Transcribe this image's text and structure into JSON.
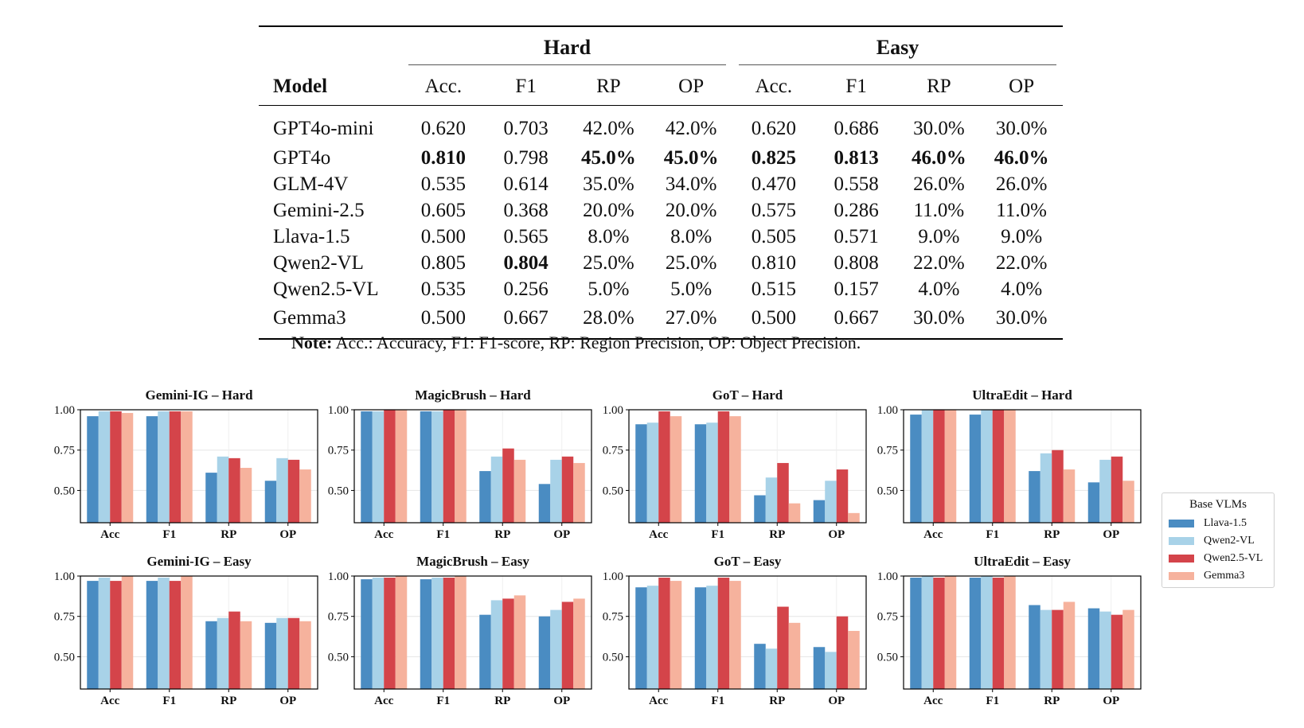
{
  "table": {
    "groups": [
      "Hard",
      "Easy"
    ],
    "model_header": "Model",
    "columns": [
      "Acc.",
      "F1",
      "RP",
      "OP",
      "Acc.",
      "F1",
      "RP",
      "OP"
    ],
    "rows": [
      {
        "model": "GPT4o-mini",
        "values": [
          "0.620",
          "0.703",
          "42.0%",
          "42.0%",
          "0.620",
          "0.686",
          "30.0%",
          "30.0%"
        ],
        "bold": []
      },
      {
        "model": "GPT4o",
        "values": [
          "0.810",
          "0.798",
          "45.0%",
          "45.0%",
          "0.825",
          "0.813",
          "46.0%",
          "46.0%"
        ],
        "bold": [
          0,
          2,
          3,
          4,
          5,
          6,
          7
        ]
      },
      {
        "model": "GLM-4V",
        "values": [
          "0.535",
          "0.614",
          "35.0%",
          "34.0%",
          "0.470",
          "0.558",
          "26.0%",
          "26.0%"
        ],
        "bold": []
      },
      {
        "model": "Gemini-2.5",
        "values": [
          "0.605",
          "0.368",
          "20.0%",
          "20.0%",
          "0.575",
          "0.286",
          "11.0%",
          "11.0%"
        ],
        "bold": []
      },
      {
        "model": "Llava-1.5",
        "values": [
          "0.500",
          "0.565",
          "8.0%",
          "8.0%",
          "0.505",
          "0.571",
          "9.0%",
          "9.0%"
        ],
        "bold": []
      },
      {
        "model": "Qwen2-VL",
        "values": [
          "0.805",
          "0.804",
          "25.0%",
          "25.0%",
          "0.810",
          "0.808",
          "22.0%",
          "22.0%"
        ],
        "bold": [
          1
        ]
      },
      {
        "model": "Qwen2.5-VL",
        "values": [
          "0.535",
          "0.256",
          "5.0%",
          "5.0%",
          "0.515",
          "0.157",
          "4.0%",
          "4.0%"
        ],
        "bold": []
      },
      {
        "model": "Gemma3",
        "values": [
          "0.500",
          "0.667",
          "28.0%",
          "27.0%",
          "0.500",
          "0.667",
          "30.0%",
          "30.0%"
        ],
        "bold": []
      }
    ]
  },
  "note": {
    "label": "Note:",
    "text": "Acc.: Accuracy, F1: F1-score, RP: Region Precision, OP: Object Precision."
  },
  "legend": {
    "title": "Base VLMs",
    "items": [
      {
        "name": "Llava-1.5",
        "color": "#4a8cc2"
      },
      {
        "name": "Qwen2-VL",
        "color": "#a8d2e8"
      },
      {
        "name": "Qwen2.5-VL",
        "color": "#d4444a"
      },
      {
        "name": "Gemma3",
        "color": "#f6b29d"
      }
    ]
  },
  "chart_data": [
    {
      "type": "bar",
      "title": "Gemini-IG – Hard",
      "categories": [
        "Acc",
        "F1",
        "RP",
        "OP"
      ],
      "ylim": [
        0.3,
        1.0
      ],
      "yticks": [
        "0.50",
        "0.75",
        "1.00"
      ],
      "grid": true,
      "series": [
        {
          "name": "Llava-1.5",
          "values": [
            0.96,
            0.96,
            0.61,
            0.56
          ]
        },
        {
          "name": "Qwen2-VL",
          "values": [
            0.99,
            0.99,
            0.71,
            0.7
          ]
        },
        {
          "name": "Qwen2.5-VL",
          "values": [
            0.99,
            0.99,
            0.7,
            0.69
          ]
        },
        {
          "name": "Gemma3",
          "values": [
            0.98,
            0.99,
            0.64,
            0.63
          ]
        }
      ]
    },
    {
      "type": "bar",
      "title": "MagicBrush – Hard",
      "categories": [
        "Acc",
        "F1",
        "RP",
        "OP"
      ],
      "ylim": [
        0.3,
        1.0
      ],
      "yticks": [
        "0.50",
        "0.75",
        "1.00"
      ],
      "grid": true,
      "series": [
        {
          "name": "Llava-1.5",
          "values": [
            0.99,
            0.99,
            0.62,
            0.54
          ]
        },
        {
          "name": "Qwen2-VL",
          "values": [
            0.99,
            0.99,
            0.71,
            0.69
          ]
        },
        {
          "name": "Qwen2.5-VL",
          "values": [
            1.0,
            1.0,
            0.76,
            0.71
          ]
        },
        {
          "name": "Gemma3",
          "values": [
            1.0,
            1.0,
            0.69,
            0.67
          ]
        }
      ]
    },
    {
      "type": "bar",
      "title": "GoT – Hard",
      "categories": [
        "Acc",
        "F1",
        "RP",
        "OP"
      ],
      "ylim": [
        0.3,
        1.0
      ],
      "yticks": [
        "0.50",
        "0.75",
        "1.00"
      ],
      "grid": true,
      "series": [
        {
          "name": "Llava-1.5",
          "values": [
            0.91,
            0.91,
            0.47,
            0.44
          ]
        },
        {
          "name": "Qwen2-VL",
          "values": [
            0.92,
            0.92,
            0.58,
            0.56
          ]
        },
        {
          "name": "Qwen2.5-VL",
          "values": [
            0.99,
            0.99,
            0.67,
            0.63
          ]
        },
        {
          "name": "Gemma3",
          "values": [
            0.96,
            0.96,
            0.42,
            0.36
          ]
        }
      ]
    },
    {
      "type": "bar",
      "title": "UltraEdit – Hard",
      "categories": [
        "Acc",
        "F1",
        "RP",
        "OP"
      ],
      "ylim": [
        0.3,
        1.0
      ],
      "yticks": [
        "0.50",
        "0.75",
        "1.00"
      ],
      "grid": true,
      "series": [
        {
          "name": "Llava-1.5",
          "values": [
            0.97,
            0.97,
            0.62,
            0.55
          ]
        },
        {
          "name": "Qwen2-VL",
          "values": [
            1.0,
            1.0,
            0.73,
            0.69
          ]
        },
        {
          "name": "Qwen2.5-VL",
          "values": [
            1.0,
            1.0,
            0.75,
            0.71
          ]
        },
        {
          "name": "Gemma3",
          "values": [
            1.0,
            1.0,
            0.63,
            0.56
          ]
        }
      ]
    },
    {
      "type": "bar",
      "title": "Gemini-IG – Easy",
      "categories": [
        "Acc",
        "F1",
        "RP",
        "OP"
      ],
      "ylim": [
        0.3,
        1.0
      ],
      "yticks": [
        "0.50",
        "0.75",
        "1.00"
      ],
      "grid": true,
      "series": [
        {
          "name": "Llava-1.5",
          "values": [
            0.97,
            0.97,
            0.72,
            0.71
          ]
        },
        {
          "name": "Qwen2-VL",
          "values": [
            0.99,
            0.99,
            0.74,
            0.74
          ]
        },
        {
          "name": "Qwen2.5-VL",
          "values": [
            0.97,
            0.97,
            0.78,
            0.74
          ]
        },
        {
          "name": "Gemma3",
          "values": [
            1.0,
            1.0,
            0.72,
            0.72
          ]
        }
      ]
    },
    {
      "type": "bar",
      "title": "MagicBrush – Easy",
      "categories": [
        "Acc",
        "F1",
        "RP",
        "OP"
      ],
      "ylim": [
        0.3,
        1.0
      ],
      "yticks": [
        "0.50",
        "0.75",
        "1.00"
      ],
      "grid": true,
      "series": [
        {
          "name": "Llava-1.5",
          "values": [
            0.98,
            0.98,
            0.76,
            0.75
          ]
        },
        {
          "name": "Qwen2-VL",
          "values": [
            0.99,
            0.99,
            0.85,
            0.79
          ]
        },
        {
          "name": "Qwen2.5-VL",
          "values": [
            0.99,
            0.99,
            0.86,
            0.84
          ]
        },
        {
          "name": "Gemma3",
          "values": [
            1.0,
            1.0,
            0.88,
            0.86
          ]
        }
      ]
    },
    {
      "type": "bar",
      "title": "GoT – Easy",
      "categories": [
        "Acc",
        "F1",
        "RP",
        "OP"
      ],
      "ylim": [
        0.3,
        1.0
      ],
      "yticks": [
        "0.50",
        "0.75",
        "1.00"
      ],
      "grid": true,
      "series": [
        {
          "name": "Llava-1.5",
          "values": [
            0.93,
            0.93,
            0.58,
            0.56
          ]
        },
        {
          "name": "Qwen2-VL",
          "values": [
            0.94,
            0.94,
            0.55,
            0.53
          ]
        },
        {
          "name": "Qwen2.5-VL",
          "values": [
            0.99,
            0.99,
            0.81,
            0.75
          ]
        },
        {
          "name": "Gemma3",
          "values": [
            0.97,
            0.97,
            0.71,
            0.66
          ]
        }
      ]
    },
    {
      "type": "bar",
      "title": "UltraEdit – Easy",
      "categories": [
        "Acc",
        "F1",
        "RP",
        "OP"
      ],
      "ylim": [
        0.3,
        1.0
      ],
      "yticks": [
        "0.50",
        "0.75",
        "1.00"
      ],
      "grid": true,
      "series": [
        {
          "name": "Llava-1.5",
          "values": [
            0.99,
            0.99,
            0.82,
            0.8
          ]
        },
        {
          "name": "Qwen2-VL",
          "values": [
            1.0,
            1.0,
            0.79,
            0.78
          ]
        },
        {
          "name": "Qwen2.5-VL",
          "values": [
            0.99,
            0.99,
            0.79,
            0.76
          ]
        },
        {
          "name": "Gemma3",
          "values": [
            1.0,
            1.0,
            0.84,
            0.79
          ]
        }
      ]
    }
  ]
}
